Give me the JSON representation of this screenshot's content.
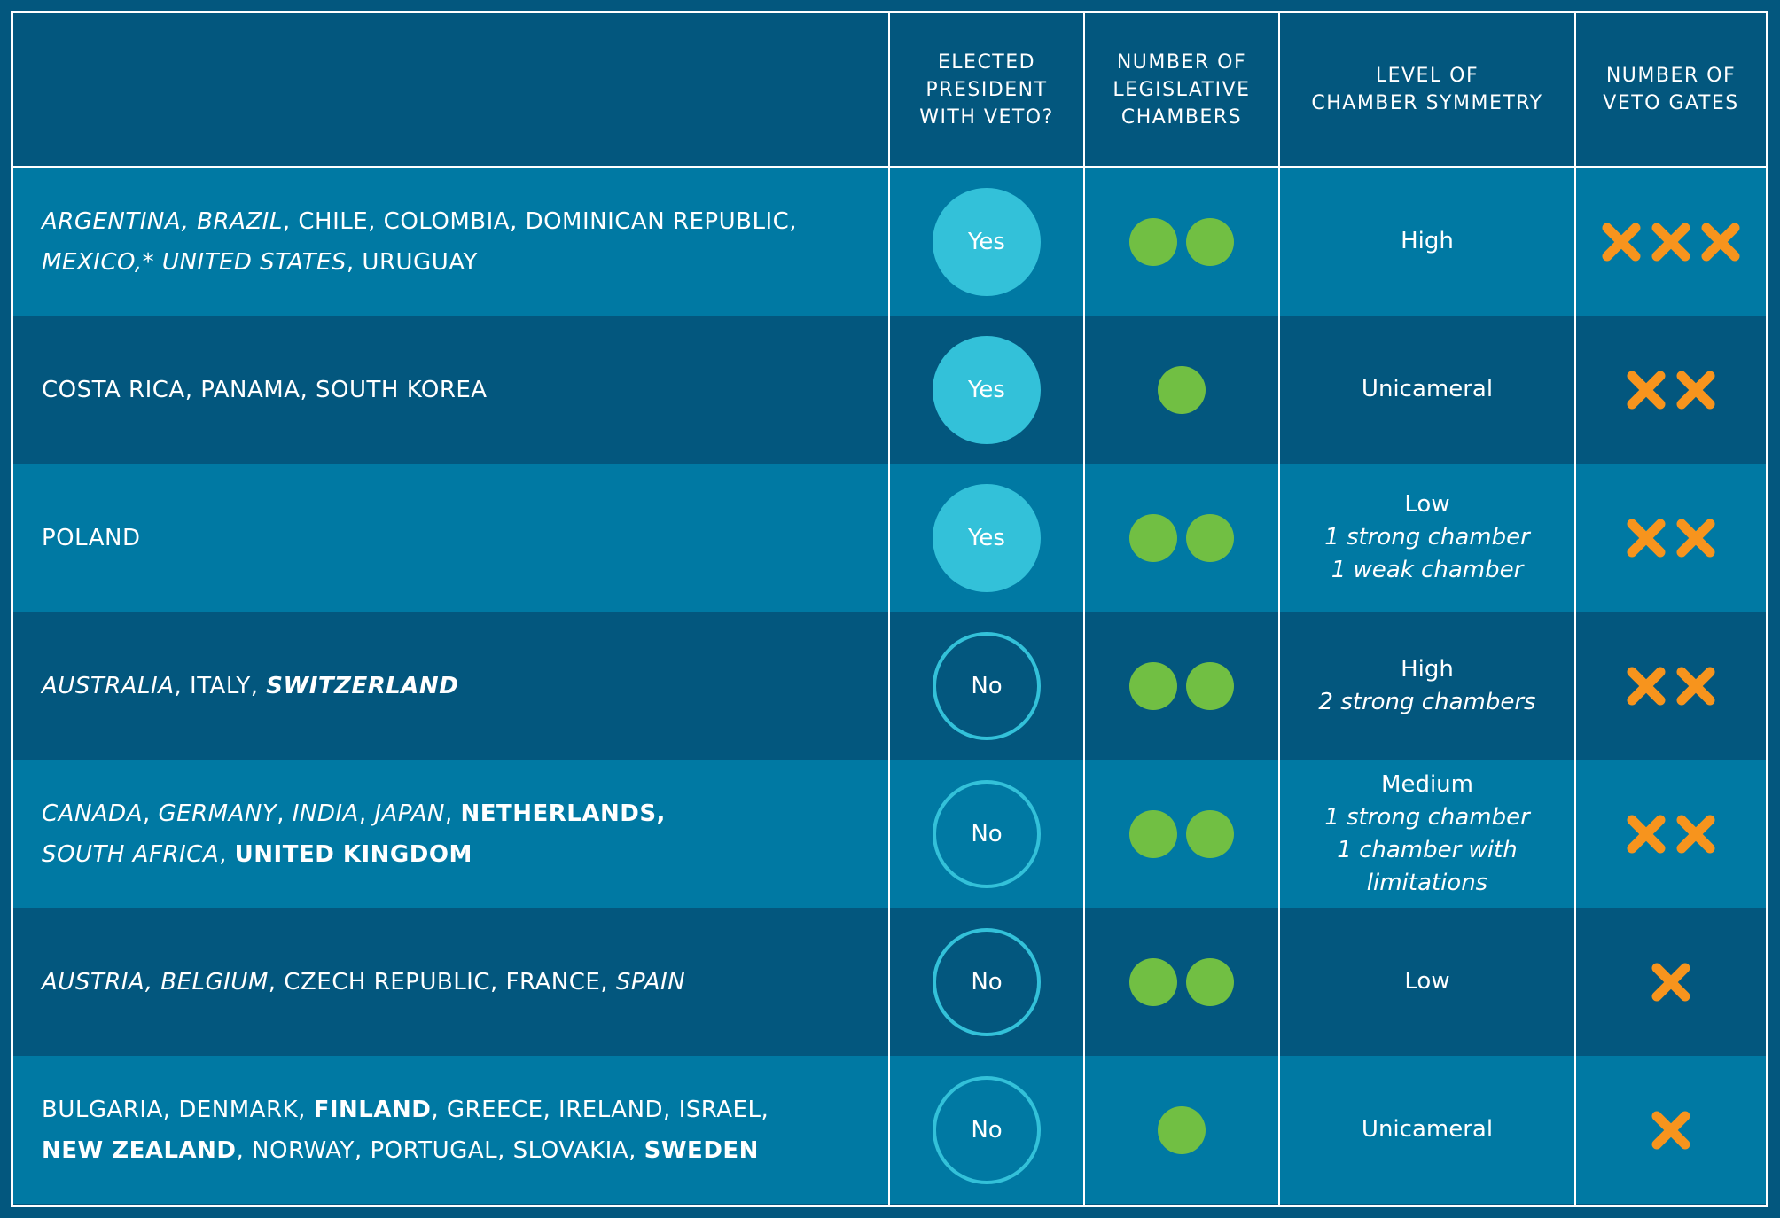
{
  "headers": {
    "president": "ELECTED\nPRESIDENT\nWITH VETO?",
    "chambers": "NUMBER OF\nLEGISLATIVE\nCHAMBERS",
    "symmetry": "LEVEL OF\nCHAMBER SYMMETRY",
    "veto_gates": "NUMBER OF\nVETO GATES"
  },
  "colors": {
    "background": "#03577e",
    "row_light": "#0079a3",
    "president_circle": "#33c1d9",
    "chamber_dot": "#71bf43",
    "veto_x": "#f7941d"
  },
  "rows": [
    {
      "countries": [
        [
          {
            "text": "ARGENTINA, BRAZIL",
            "style": "italic"
          },
          {
            "text": ", CHILE, COLOMBIA, DOMINICAN REPUBLIC,",
            "style": "normal"
          }
        ],
        [
          {
            "text": "MEXICO,* UNITED STATES",
            "style": "italic"
          },
          {
            "text": ", URUGUAY",
            "style": "normal"
          }
        ]
      ],
      "president": "Yes",
      "president_veto": true,
      "chambers": 2,
      "symmetry": {
        "main": "High",
        "details": []
      },
      "veto_gates": 3
    },
    {
      "countries": [
        [
          {
            "text": "COSTA RICA, PANAMA, SOUTH KOREA",
            "style": "normal"
          }
        ]
      ],
      "president": "Yes",
      "president_veto": true,
      "chambers": 1,
      "symmetry": {
        "main": "Unicameral",
        "details": []
      },
      "veto_gates": 2
    },
    {
      "countries": [
        [
          {
            "text": "POLAND",
            "style": "normal"
          }
        ]
      ],
      "president": "Yes",
      "president_veto": true,
      "chambers": 2,
      "symmetry": {
        "main": "Low",
        "details": [
          "1 strong chamber",
          "1 weak chamber"
        ]
      },
      "veto_gates": 2
    },
    {
      "countries": [
        [
          {
            "text": "AUSTRALIA",
            "style": "italic"
          },
          {
            "text": ", ITALY, ",
            "style": "normal"
          },
          {
            "text": "SWITZERLAND",
            "style": "bold-italic"
          }
        ]
      ],
      "president": "No",
      "president_veto": false,
      "chambers": 2,
      "symmetry": {
        "main": "High",
        "details": [
          "2 strong chambers"
        ]
      },
      "veto_gates": 2
    },
    {
      "countries": [
        [
          {
            "text": "CANADA",
            "style": "italic"
          },
          {
            "text": ", ",
            "style": "normal"
          },
          {
            "text": "GERMANY",
            "style": "italic"
          },
          {
            "text": ", ",
            "style": "normal"
          },
          {
            "text": "INDIA",
            "style": "italic"
          },
          {
            "text": ", ",
            "style": "normal"
          },
          {
            "text": "JAPAN",
            "style": "italic"
          },
          {
            "text": ", ",
            "style": "normal"
          },
          {
            "text": "NETHERLANDS,",
            "style": "bold"
          }
        ],
        [
          {
            "text": "SOUTH AFRICA",
            "style": "italic"
          },
          {
            "text": ", ",
            "style": "normal"
          },
          {
            "text": "UNITED KINGDOM",
            "style": "bold"
          }
        ]
      ],
      "president": "No",
      "president_veto": false,
      "chambers": 2,
      "symmetry": {
        "main": "Medium",
        "details": [
          "1 strong chamber",
          "1 chamber with",
          "limitations"
        ]
      },
      "veto_gates": 2
    },
    {
      "countries": [
        [
          {
            "text": "AUSTRIA, BELGIUM",
            "style": "italic"
          },
          {
            "text": ", CZECH REPUBLIC, FRANCE, ",
            "style": "normal"
          },
          {
            "text": "SPAIN",
            "style": "italic"
          }
        ]
      ],
      "president": "No",
      "president_veto": false,
      "chambers": 2,
      "symmetry": {
        "main": "Low",
        "details": []
      },
      "veto_gates": 1
    },
    {
      "countries": [
        [
          {
            "text": "BULGARIA, DENMARK, ",
            "style": "normal"
          },
          {
            "text": "FINLAND",
            "style": "bold"
          },
          {
            "text": ", GREECE, IRELAND, ISRAEL,",
            "style": "normal"
          }
        ],
        [
          {
            "text": "NEW ZEALAND",
            "style": "bold"
          },
          {
            "text": ",  NORWAY, PORTUGAL, SLOVAKIA, ",
            "style": "normal"
          },
          {
            "text": "SWEDEN",
            "style": "bold"
          }
        ]
      ],
      "president": "No",
      "president_veto": false,
      "chambers": 1,
      "symmetry": {
        "main": "Unicameral",
        "details": []
      },
      "veto_gates": 1
    }
  ]
}
